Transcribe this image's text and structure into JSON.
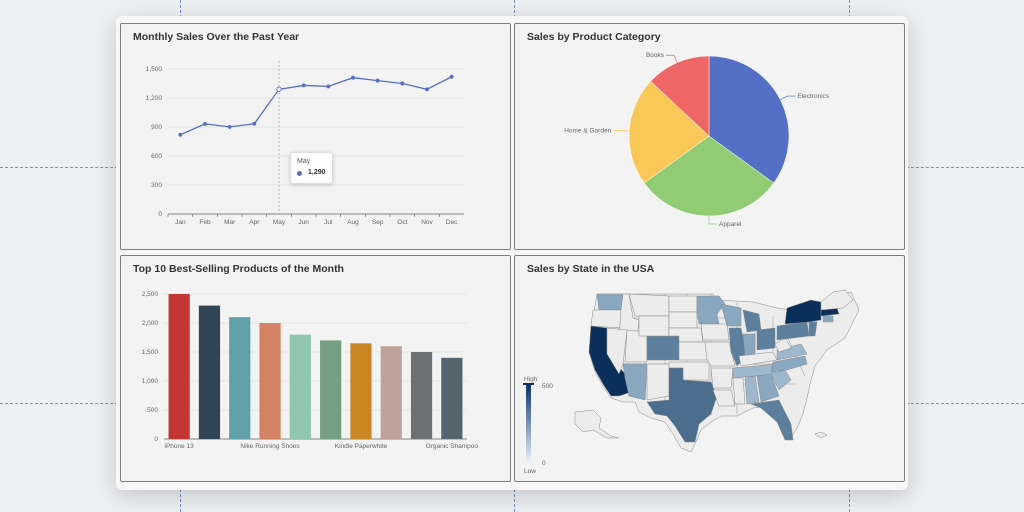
{
  "colors": {
    "line": "#5470c6",
    "pie": [
      "#5470c6",
      "#91cc75",
      "#fac858",
      "#ee6666"
    ],
    "bars": [
      "#c23531",
      "#2f4554",
      "#61a0a8",
      "#d48265",
      "#91c7ae",
      "#749f83",
      "#ca8622",
      "#bda29a",
      "#6e7074",
      "#546570"
    ],
    "map_low": "#f0f0f0",
    "map_high": "#08306b"
  },
  "chart_data": [
    {
      "type": "line",
      "title": "Monthly Sales Over the Past Year",
      "categories": [
        "Jan",
        "Feb",
        "Mar",
        "Apr",
        "May",
        "Jun",
        "Jul",
        "Aug",
        "Sep",
        "Oct",
        "Nov",
        "Dec"
      ],
      "values": [
        820,
        932,
        901,
        934,
        1290,
        1330,
        1320,
        1410,
        1380,
        1350,
        1290,
        1420
      ],
      "ylim": [
        0,
        1500
      ],
      "yticks": [
        "0",
        "300",
        "600",
        "900",
        "1,200",
        "1,500"
      ],
      "grid": true,
      "tooltip": {
        "label": "May",
        "value": "1,290"
      }
    },
    {
      "type": "pie",
      "title": "Sales by Product Category",
      "slices": [
        {
          "label": "Electronics",
          "value": 35
        },
        {
          "label": "Apparel",
          "value": 30
        },
        {
          "label": "Home & Garden",
          "value": 22
        },
        {
          "label": "Books",
          "value": 13
        }
      ]
    },
    {
      "type": "bar",
      "title": "Top 10 Best-Selling Products of the Month",
      "values": [
        2500,
        2300,
        2100,
        2000,
        1800,
        1700,
        1650,
        1600,
        1500,
        1400
      ],
      "xtick_labels": [
        "iPhone 13",
        "",
        "",
        "Nike Running Shoes",
        "",
        "",
        "Kindle Paperwhite",
        "",
        "",
        "Organic Shampoo"
      ],
      "ylim": [
        0,
        2500
      ],
      "yticks": [
        "0",
        "500",
        "1,000",
        "1,500",
        "2,000",
        "2,500"
      ]
    },
    {
      "type": "heatmap",
      "title": "Sales by State in the USA",
      "visual_map": {
        "min": 0,
        "max": 500,
        "high_label": "High",
        "low_label": "Low"
      }
    }
  ]
}
